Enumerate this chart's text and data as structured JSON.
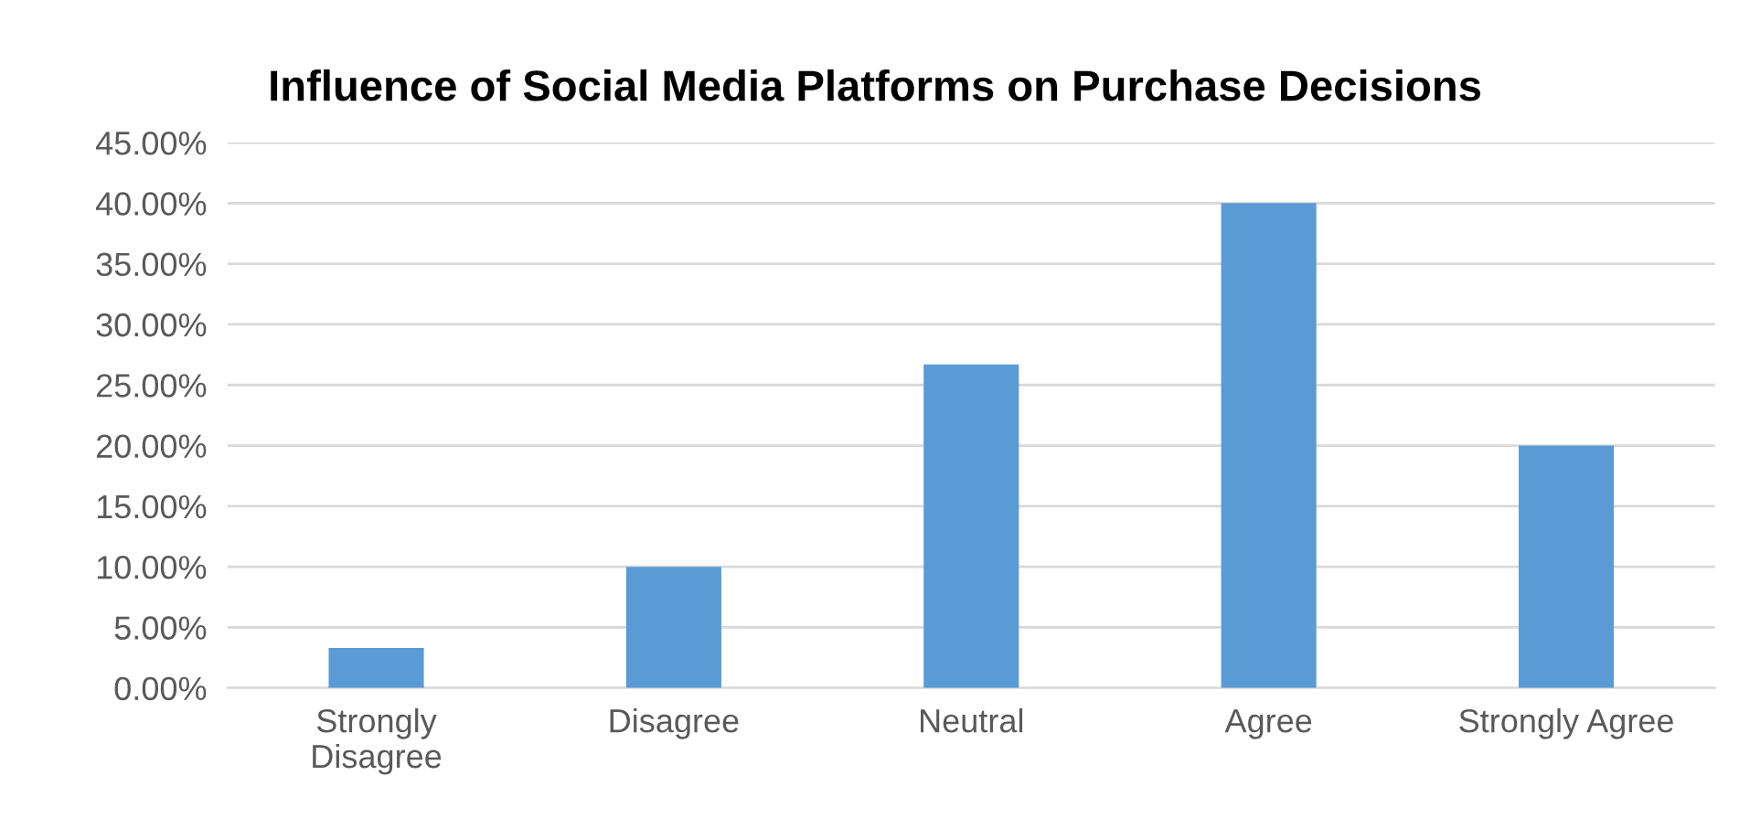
{
  "chart_data": {
    "type": "bar",
    "title": "Influence of Social Media Platforms on Purchase Decisions",
    "categories": [
      "Strongly Disagree",
      "Disagree",
      "Neutral",
      "Agree",
      "Strongly Agree"
    ],
    "values": [
      3.3,
      10,
      26.7,
      40,
      20
    ],
    "color": "#5b9bd5",
    "ylim": [
      0,
      45
    ],
    "yticks": [
      {
        "value": 0,
        "label": "0.00%"
      },
      {
        "value": 5,
        "label": "5.00%"
      },
      {
        "value": 10,
        "label": "10.00%"
      },
      {
        "value": 15,
        "label": "15.00%"
      },
      {
        "value": 20,
        "label": "20.00%"
      },
      {
        "value": 25,
        "label": "25.00%"
      },
      {
        "value": 30,
        "label": "30.00%"
      },
      {
        "value": 35,
        "label": "35.00%"
      },
      {
        "value": 40,
        "label": "40.00%"
      },
      {
        "value": 45,
        "label": "45.00%"
      }
    ],
    "grid": "y"
  }
}
